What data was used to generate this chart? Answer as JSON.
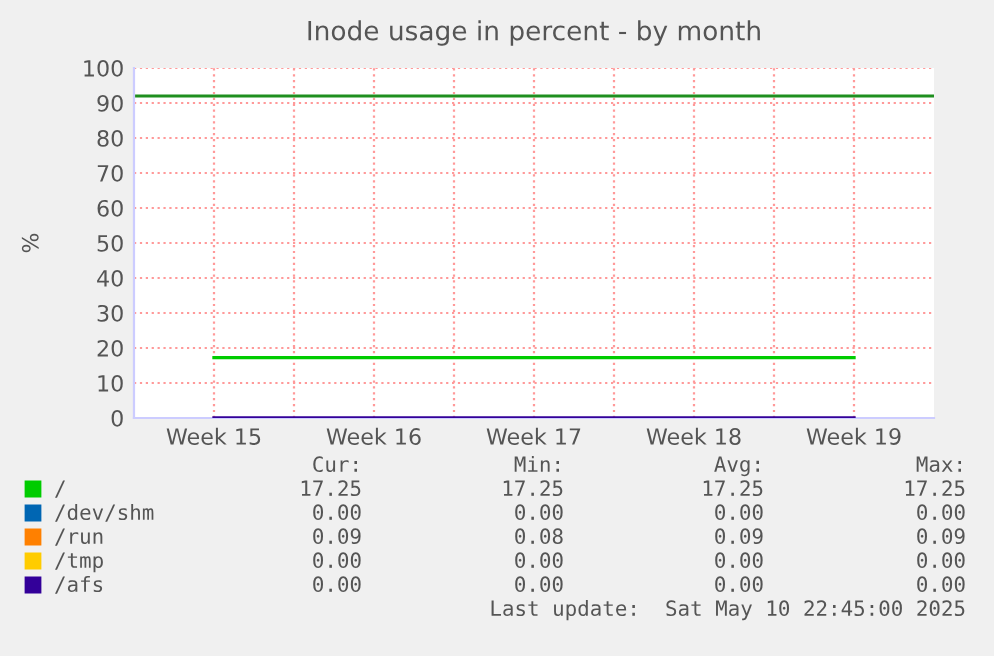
{
  "chart_data": {
    "type": "line",
    "title": "Inode usage in percent - by month",
    "ylabel": "%",
    "categories": [
      "Week 15",
      "Week 16",
      "Week 17",
      "Week 18",
      "Week 19"
    ],
    "ylim": [
      0,
      100
    ],
    "yticks": [
      0,
      10,
      20,
      30,
      40,
      50,
      60,
      70,
      80,
      90,
      100
    ],
    "grid": true,
    "legend": "bottom",
    "marker": "none",
    "line_style": "solid",
    "series": [
      {
        "name": "/",
        "color": "#00cc00",
        "values": [
          17.25,
          17.25,
          17.25,
          17.25,
          17.25
        ]
      },
      {
        "name": "/dev/shm",
        "color": "#0066b3",
        "values": [
          null,
          null,
          null,
          null,
          null
        ]
      },
      {
        "name": "/run",
        "color": "#ff8000",
        "values": [
          null,
          null,
          null,
          null,
          null
        ]
      },
      {
        "name": "/tmp",
        "color": "#ffcc00",
        "values": [
          null,
          null,
          null,
          null,
          null
        ]
      },
      {
        "name": "/afs",
        "color": "#330099",
        "values": [
          0,
          0,
          0,
          0,
          0
        ]
      }
    ],
    "ref_lines": [
      {
        "axis": "y",
        "value": 92,
        "color": "#1f8f1f"
      }
    ],
    "annotations": [
      "Cur:",
      "Min:",
      "Avg:",
      "Max:",
      "17.25",
      "17.25",
      "17.25",
      "17.25",
      "0.00",
      "0.00",
      "0.00",
      "0.00",
      "0.09",
      "0.08",
      "0.09",
      "0.09",
      "0.00",
      "0.00",
      "0.00",
      "0.00",
      "0.00",
      "0.00",
      "0.00",
      "0.00",
      "Last update:  Sat May 10 22:45:00 2025"
    ]
  }
}
